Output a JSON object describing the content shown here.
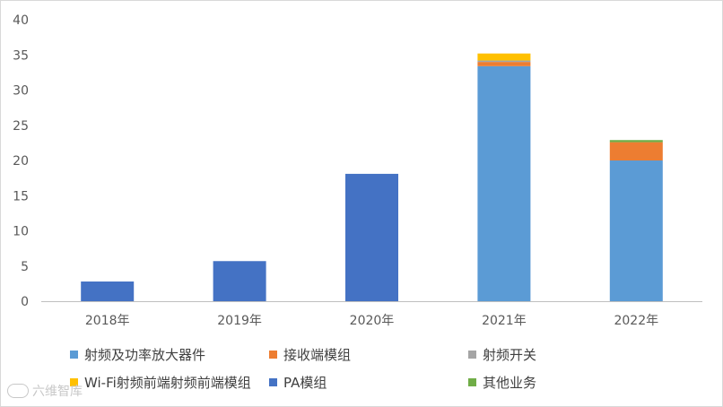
{
  "chart_data": {
    "type": "bar",
    "stacked": true,
    "categories": [
      "2018年",
      "2019年",
      "2020年",
      "2021年",
      "2022年"
    ],
    "ylim": [
      0,
      40
    ],
    "yticks": [
      0,
      5,
      10,
      15,
      20,
      25,
      30,
      35,
      40
    ],
    "grid": false,
    "legend_position": "bottom",
    "series": [
      {
        "name": "射频及功率放大器件",
        "color": "#5b9bd5",
        "values": [
          0,
          0,
          0,
          33.4,
          20.0
        ]
      },
      {
        "name": "接收端模组",
        "color": "#ed7d31",
        "values": [
          0,
          0,
          0,
          0.6,
          2.6
        ]
      },
      {
        "name": "射频开关",
        "color": "#a5a5a5",
        "values": [
          0,
          0,
          0,
          0.2,
          0
        ]
      },
      {
        "name": "Wi-Fi射频前端射频前端模组",
        "color": "#ffc000",
        "values": [
          0,
          0,
          0,
          1.0,
          0
        ]
      },
      {
        "name": "PA模组",
        "color": "#4472c4",
        "values": [
          2.8,
          5.7,
          18.1,
          0,
          0
        ]
      },
      {
        "name": "其他业务",
        "color": "#70ad47",
        "values": [
          0,
          0,
          0,
          0,
          0.3
        ]
      }
    ]
  },
  "watermark": {
    "text": "六维智库"
  }
}
